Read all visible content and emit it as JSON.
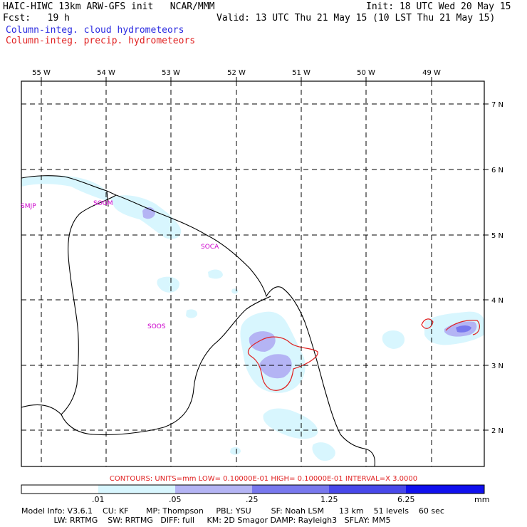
{
  "header": {
    "title": "HAIC-HIWC 13km ARW-GFS init   NCAR/MMM",
    "init": "Init: 18 UTC Wed 20 May 15",
    "fcst": "Fcst:   19 h",
    "valid": "Valid: 13 UTC Thu 21 May 15 (10 LST Thu 21 May 15)",
    "field_blue": "Column-integ. cloud hydrometeors",
    "field_red": "Column-integ. precip. hydrometeors"
  },
  "colors": {
    "blue_text": "#2a2ae0",
    "red_text": "#e02020",
    "station_label": "#cc00cc",
    "shade_1": "#d8f6fe",
    "shade_2": "#b4b4f4",
    "shade_3": "#7878ee",
    "shade_4": "#4848ea",
    "shade_5": "#1010ee"
  },
  "axes": {
    "lon_labels": [
      "55 W",
      "54 W",
      "53 W",
      "52 W",
      "51 W",
      "50 W",
      "49 W"
    ],
    "lat_labels": [
      "7 N",
      "6 N",
      "5 N",
      "4 N",
      "3 N",
      "2 N"
    ]
  },
  "stations": [
    "SMJP",
    "SOGM",
    "SOCA",
    "SOOS"
  ],
  "contours_line": "CONTOURS:  UNITS=mm  LOW= 0.10000E-01  HIGH= 0.10000E-01  INTERVAL=X  3.0000",
  "colorbar": {
    "labels": [
      ".01",
      ".05",
      ".25",
      "1.25",
      "6.25"
    ],
    "units": "mm"
  },
  "model_info": {
    "line1": "Model Info: V3.6.1    CU: KF       MP: Thompson     PBL: YSU        SF: Noah LSM      13 km    51 levels    60 sec",
    "line2": "             LW: RRTMG    SW: RRTMG   DIFF: full     KM: 2D Smagor DAMP: Rayleigh3   SFLAY: MM5"
  }
}
